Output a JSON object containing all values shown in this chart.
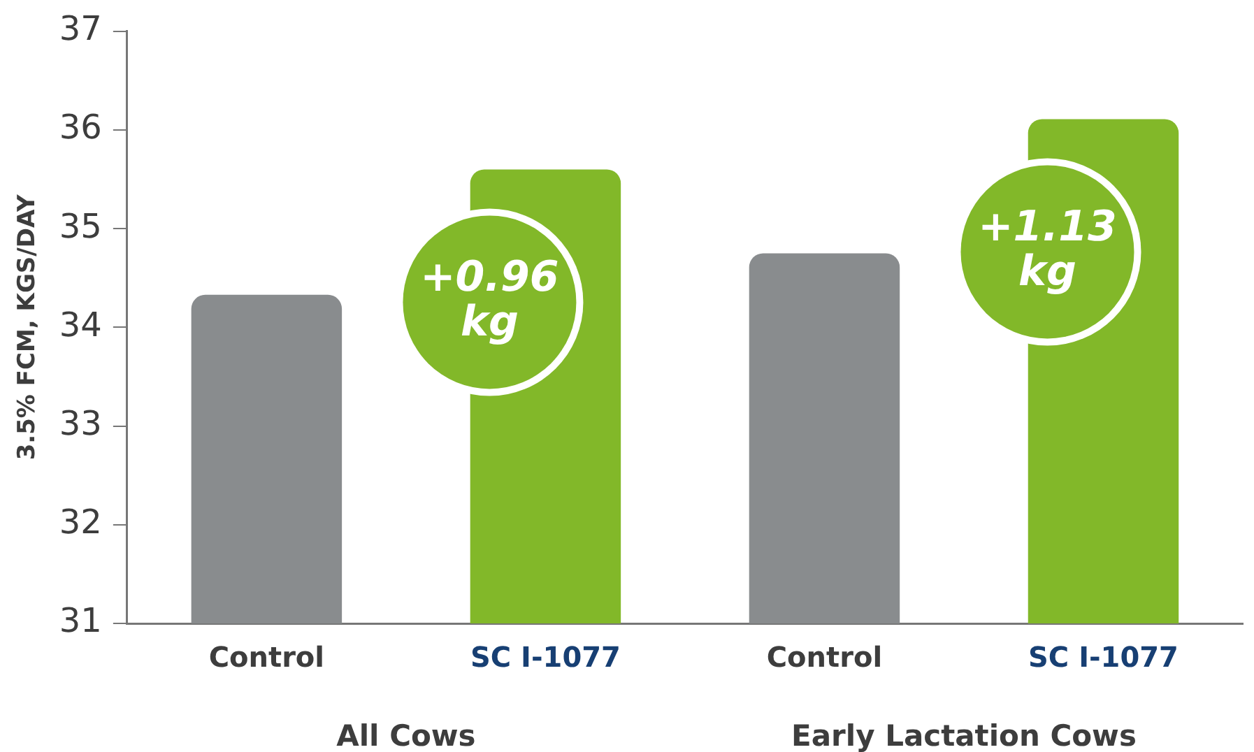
{
  "chart_data": {
    "type": "bar",
    "ylabel": "3.5% FCM, KGS/DAY",
    "categories": [
      "Control",
      "SC I-1077",
      "Control",
      "SC I-1077"
    ],
    "values": [
      34.33,
      35.6,
      34.75,
      36.11
    ],
    "colors": [
      "#898c8e",
      "#82b829",
      "#898c8e",
      "#82b829"
    ],
    "ylim": [
      31,
      37
    ],
    "yticks": [
      31,
      32,
      33,
      34,
      35,
      36,
      37
    ],
    "grid": false,
    "legend": false,
    "annotations": [
      "+0.96 kg",
      "+1.13 kg",
      "All Cows",
      "Early Lactation Cows"
    ]
  }
}
